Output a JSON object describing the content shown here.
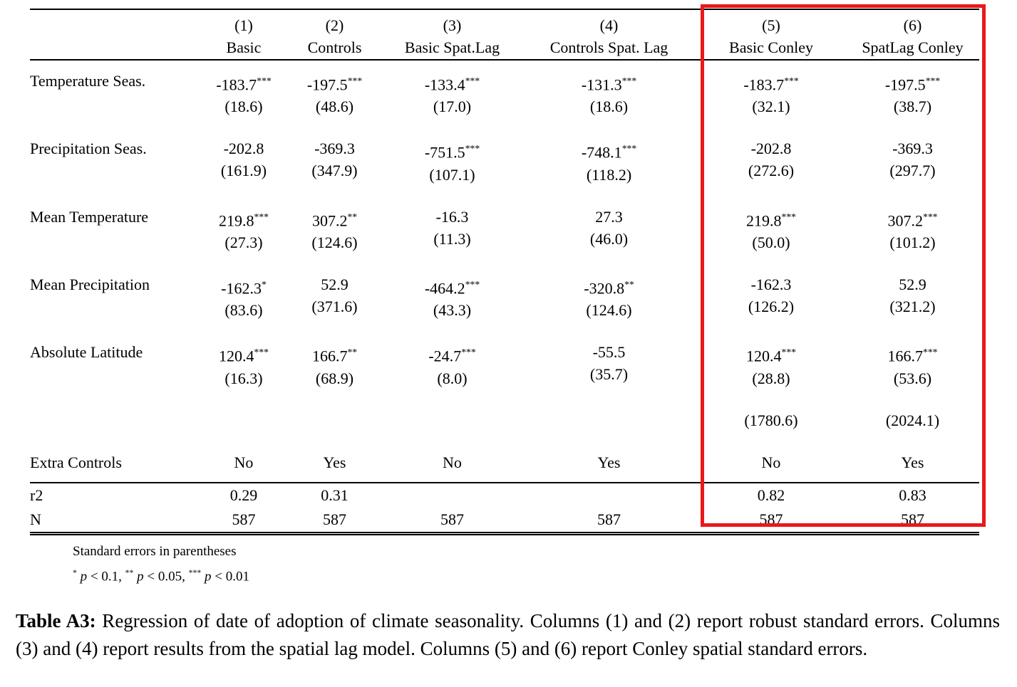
{
  "colors": {
    "highlight_box": "#e8191a",
    "text": "#000000",
    "background": "#ffffff"
  },
  "table": {
    "col_numbers": [
      "(1)",
      "(2)",
      "(3)",
      "(4)",
      "(5)",
      "(6)"
    ],
    "col_names": [
      "Basic",
      "Controls",
      "Basic Spat.Lag",
      "Controls Spat. Lag",
      "Basic Conley",
      "SpatLag Conley"
    ],
    "rows": [
      {
        "label": "Temperature Seas.",
        "est": [
          "-183.7***",
          "-197.5***",
          "-133.4***",
          "-131.3***",
          "-183.7***",
          "-197.5***"
        ],
        "se": [
          "(18.6)",
          "(48.6)",
          "(17.0)",
          "(18.6)",
          "(32.1)",
          "(38.7)"
        ]
      },
      {
        "label": "Precipitation Seas.",
        "est": [
          "-202.8",
          "-369.3",
          "-751.5***",
          "-748.1***",
          "-202.8",
          "-369.3"
        ],
        "se": [
          "(161.9)",
          "(347.9)",
          "(107.1)",
          "(118.2)",
          "(272.6)",
          "(297.7)"
        ]
      },
      {
        "label": "Mean Temperature",
        "est": [
          "219.8***",
          "307.2**",
          "-16.3",
          "27.3",
          "219.8***",
          "307.2***"
        ],
        "se": [
          "(27.3)",
          "(124.6)",
          "(11.3)",
          "(46.0)",
          "(50.0)",
          "(101.2)"
        ]
      },
      {
        "label": "Mean Precipitation",
        "est": [
          "-162.3*",
          "52.9",
          "-464.2***",
          "-320.8**",
          "-162.3",
          "52.9"
        ],
        "se": [
          "(83.6)",
          "(371.6)",
          "(43.3)",
          "(124.6)",
          "(126.2)",
          "(321.2)"
        ]
      },
      {
        "label": "Absolute Latitude",
        "est": [
          "120.4***",
          "166.7**",
          "-24.7***",
          "-55.5",
          "120.4***",
          "166.7***"
        ],
        "se": [
          "(16.3)",
          "(68.9)",
          "(8.0)",
          "(35.7)",
          "(28.8)",
          "(53.6)"
        ]
      },
      {
        "label": "",
        "est": [
          "",
          "",
          "",
          "",
          "",
          ""
        ],
        "se": [
          "",
          "",
          "",
          "",
          "(1780.6)",
          "(2024.1)"
        ]
      }
    ],
    "extra_controls": {
      "label": "Extra Controls",
      "values": [
        "No",
        "Yes",
        "No",
        "Yes",
        "No",
        "Yes"
      ]
    },
    "stats": [
      {
        "label": "r2",
        "values": [
          "0.29",
          "0.31",
          "",
          "",
          "0.82",
          "0.83"
        ]
      },
      {
        "label": "N",
        "values": [
          "587",
          "587",
          "587",
          "587",
          "587",
          "587"
        ]
      }
    ],
    "notes": [
      "Standard errors in parentheses",
      "* p < 0.1, ** p < 0.05, *** p < 0.01"
    ]
  },
  "caption": {
    "label": "Table A3:",
    "text": " Regression of date of adoption of climate seasonality. Columns (1) and (2) report robust standard errors. Columns (3) and (4) report results from the spatial lag model. Columns (5) and (6) report Conley spatial standard errors."
  }
}
